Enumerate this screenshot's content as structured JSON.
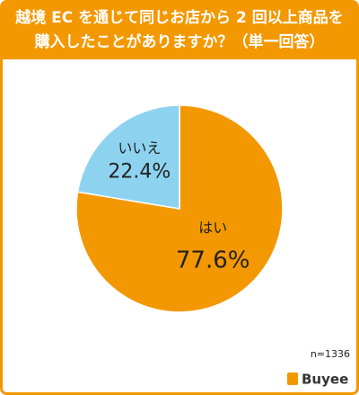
{
  "chart_data": {
    "type": "pie",
    "title": [
      "越境 EC を通じて同じお店から 2 回以上商品を",
      "購入したことがありますか？（単一回答）"
    ],
    "categories": [
      "はい",
      "いいえ"
    ],
    "values": [
      77.6,
      22.4
    ],
    "value_labels": [
      "77.6%",
      "22.4%"
    ],
    "colors": [
      "#f39800",
      "#8dd3f0"
    ],
    "note": "n=1336",
    "logo": "Buyee"
  }
}
